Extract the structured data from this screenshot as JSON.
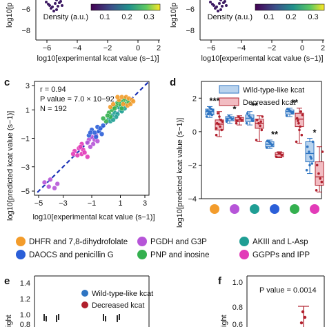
{
  "colors": {
    "dhfr": "#f39c2b",
    "pgdh": "#b655d8",
    "akiii": "#1f9e94",
    "daocs": "#2b5fd8",
    "pnp": "#34b04f",
    "ggpps": "#e23bb8",
    "wild": "#2f75c2",
    "wild_fill": "#b9d3ee",
    "decreased": "#b1202d",
    "decreased_fill": "#f2bcc2",
    "fit_line": "#1c33b6"
  },
  "top": {
    "left": {
      "ylabel": "log10[p",
      "yticks": [
        "−6",
        "−8"
      ],
      "xticks": [
        "−6",
        "−4",
        "−2",
        "0",
        "2"
      ],
      "xlabel": "log10[experimental kcat value (s−1)]",
      "colorbar_label": "Density (a.u.)",
      "colorbar_ticks": [
        "0.1",
        "0.2",
        "0.3"
      ]
    },
    "right": {
      "ylabel": "log10[p",
      "yticks": [
        "−6",
        "−8"
      ],
      "xticks": [
        "−6",
        "−4",
        "−2",
        "0",
        "2"
      ],
      "xlabel": "log10[experimental kcat value (s−1)]",
      "colorbar_label": "Density (a.u.)",
      "colorbar_ticks": [
        "0.1",
        "0.2",
        "0.3"
      ]
    }
  },
  "panel_c": {
    "letter": "c",
    "r_text": "r = 0.94",
    "p_text": "P value = 7.0 × 10−92",
    "n_text": "N = 192",
    "xlabel": "log10[experimental kcat value (s−1)]",
    "ylabel": "log10[predicted kcat value (s−1)]",
    "xticks": [
      "−5",
      "−3",
      "−1",
      "1",
      "3"
    ],
    "yticks": [
      "3",
      "1",
      "−1",
      "−3",
      "−5"
    ]
  },
  "panel_d": {
    "letter": "d",
    "ylabel": "log10[predicted kcat value (s−1)]",
    "yticks": [
      "2",
      "0",
      "−2",
      "−4"
    ],
    "legend": [
      "Wild-type-like kcat",
      "Decreased kcat"
    ],
    "significance": [
      "***",
      "*",
      "**",
      "**",
      "**",
      "*"
    ]
  },
  "legend_bottom": [
    {
      "label": "DHFR and 7,8-dihydrofolate",
      "color_key": "dhfr"
    },
    {
      "label": "PGDH and G3P",
      "color_key": "pgdh"
    },
    {
      "label": "AKIII and L-Asp",
      "color_key": "akiii"
    },
    {
      "label": "DAOCS and penicillin G",
      "color_key": "daocs"
    },
    {
      "label": "PNP and inosine",
      "color_key": "pnp"
    },
    {
      "label": "GGPPs and IPP",
      "color_key": "ggpps"
    }
  ],
  "panel_e": {
    "letter": "e",
    "ylabel": "ight",
    "yticks": [
      "1.4",
      "1.2",
      "1.0",
      "0.8"
    ],
    "legend": [
      "Wild-type-like kcat",
      "Decreased kcat"
    ]
  },
  "panel_f": {
    "letter": "f",
    "ylabel": "ight",
    "yticks": [
      "1.0",
      "0.8",
      "0.6"
    ],
    "p_text": "P value = 0.0014"
  },
  "chart_data": [
    {
      "type": "scatter",
      "panel": "c",
      "xlim": [
        -5,
        3
      ],
      "ylim": [
        -5,
        3
      ],
      "diagonal": [
        [
          -5,
          -5
        ],
        [
          3,
          3
        ]
      ],
      "stats": {
        "r": 0.94,
        "p_value": "7.0 × 10−92",
        "n": 192
      },
      "groups": [
        {
          "color_key": "pgdh",
          "points": [
            [
              -4.3,
              -4.1
            ],
            [
              -4.0,
              -4.4
            ],
            [
              -3.9,
              -3.9
            ],
            [
              -3.6,
              -4.5
            ],
            [
              -3.4,
              -4.2
            ],
            [
              -1.2,
              -1.1
            ],
            [
              -1.0,
              -0.9
            ],
            [
              -0.9,
              -1.4
            ],
            [
              -1.3,
              -1.3
            ],
            [
              -0.8,
              -1.1
            ],
            [
              -0.7,
              -0.8
            ],
            [
              -1.1,
              -1.6
            ],
            [
              -0.6,
              -1.2
            ]
          ]
        },
        {
          "color_key": "ggpps",
          "points": [
            [
              -2.2,
              -1.9
            ],
            [
              -2.0,
              -2.2
            ],
            [
              -1.9,
              -1.7
            ],
            [
              -1.7,
              -2.1
            ],
            [
              -1.6,
              -1.8
            ],
            [
              -1.5,
              -2.0
            ],
            [
              -1.3,
              -2.3
            ],
            [
              -1.7,
              -1.4
            ],
            [
              -2.3,
              -2.1
            ],
            [
              -1.8,
              -1.6
            ]
          ]
        },
        {
          "color_key": "daocs",
          "points": [
            [
              -1.2,
              -0.8
            ],
            [
              -1.0,
              -0.4
            ],
            [
              -0.8,
              -0.6
            ],
            [
              -0.6,
              -0.2
            ],
            [
              -0.5,
              -0.5
            ],
            [
              -0.3,
              -0.7
            ],
            [
              -0.7,
              -0.9
            ],
            [
              -1.1,
              -0.6
            ],
            [
              -0.4,
              -0.3
            ],
            [
              -0.2,
              -0.1
            ]
          ]
        },
        {
          "color_key": "akiii",
          "points": [
            [
              0.2,
              0.4
            ],
            [
              0.4,
              0.6
            ],
            [
              0.6,
              0.8
            ],
            [
              0.8,
              0.7
            ],
            [
              1.0,
              1.0
            ],
            [
              0.3,
              0.2
            ],
            [
              0.7,
              0.5
            ],
            [
              1.1,
              0.9
            ],
            [
              0.9,
              1.2
            ],
            [
              0.5,
              0.3
            ],
            [
              1.3,
              1.1
            ]
          ]
        },
        {
          "color_key": "pnp",
          "points": [
            [
              0.0,
              0.2
            ],
            [
              0.2,
              0.8
            ],
            [
              0.4,
              1.0
            ],
            [
              0.5,
              1.2
            ],
            [
              0.7,
              1.3
            ],
            [
              0.8,
              1.5
            ],
            [
              1.0,
              1.4
            ],
            [
              1.2,
              1.6
            ],
            [
              1.4,
              1.4
            ],
            [
              1.5,
              1.7
            ],
            [
              0.6,
              1.1
            ],
            [
              0.9,
              1.6
            ],
            [
              1.1,
              1.1
            ],
            [
              1.3,
              1.8
            ],
            [
              0.3,
              0.5
            ],
            [
              -0.2,
              0.4
            ],
            [
              0.1,
              0.6
            ],
            [
              1.6,
              1.5
            ]
          ]
        },
        {
          "color_key": "dhfr",
          "points": [
            [
              0.3,
              1.2
            ],
            [
              0.5,
              1.4
            ],
            [
              0.9,
              1.7
            ],
            [
              1.1,
              1.9
            ],
            [
              1.4,
              1.9
            ],
            [
              1.6,
              1.8
            ],
            [
              1.8,
              1.7
            ],
            [
              1.5,
              1.3
            ],
            [
              1.2,
              1.4
            ],
            [
              0.8,
              1.9
            ],
            [
              1.7,
              1.4
            ],
            [
              1.9,
              1.6
            ]
          ]
        }
      ]
    },
    {
      "type": "box",
      "panel": "d",
      "ylim": [
        -4,
        3
      ],
      "groups": [
        {
          "color_key": "dhfr",
          "wild": {
            "q1": 1.0,
            "median": 1.2,
            "q3": 1.35,
            "min": 0.85,
            "max": 1.5,
            "points": [
              0.9,
              1.0,
              1.1,
              1.2,
              1.25,
              1.3,
              1.35,
              1.45,
              1.05
            ]
          },
          "decreased": {
            "q1": 0.1,
            "median": 0.45,
            "q3": 0.7,
            "min": -0.3,
            "max": 1.2,
            "points": [
              -0.2,
              0.1,
              0.3,
              0.45,
              0.5,
              0.6,
              0.7,
              0.9,
              1.1,
              0.2
            ]
          },
          "sig": "***"
        },
        {
          "color_key": "pgdh",
          "wild": {
            "q1": 0.65,
            "median": 0.8,
            "q3": 0.9,
            "min": 0.5,
            "max": 1.0,
            "points": [
              0.6,
              0.75,
              0.85,
              0.95,
              0.7
            ]
          },
          "decreased": {
            "q1": 0.6,
            "median": 0.7,
            "q3": 0.85,
            "min": 0.4,
            "max": 0.95,
            "points": [
              0.5,
              0.7,
              0.8,
              0.9,
              0.65
            ]
          },
          "sig": "*"
        },
        {
          "color_key": "akiii",
          "wild": {
            "q1": 0.6,
            "median": 0.8,
            "q3": 1.0,
            "min": 0.4,
            "max": 1.2,
            "points": [
              0.5,
              0.7,
              0.85,
              0.95,
              1.1,
              0.65
            ]
          },
          "decreased": {
            "q1": 0.2,
            "median": 0.5,
            "q3": 0.75,
            "min": -0.6,
            "max": 0.95,
            "points": [
              -0.5,
              0.1,
              0.35,
              0.5,
              0.7,
              0.9,
              0.6
            ]
          },
          "sig": "**"
        },
        {
          "color_key": "daocs",
          "wild": {
            "q1": -0.9,
            "median": -0.75,
            "q3": -0.6,
            "min": -1.0,
            "max": -0.5,
            "points": [
              -0.95,
              -0.8,
              -0.7,
              -0.6,
              -0.55
            ]
          },
          "decreased": {
            "q1": -1.5,
            "median": -1.35,
            "q3": -1.25,
            "min": -1.55,
            "max": -1.2,
            "points": [
              -1.5,
              -1.4,
              -1.3,
              -1.25
            ]
          },
          "sig": "**"
        },
        {
          "color_key": "pnp",
          "wild": {
            "q1": 1.05,
            "median": 1.2,
            "q3": 1.3,
            "min": 0.9,
            "max": 1.4,
            "points": [
              0.95,
              1.1,
              1.2,
              1.3,
              1.35,
              1.15
            ]
          },
          "decreased": {
            "q1": 0.3,
            "median": 0.75,
            "q3": 1.1,
            "min": -0.7,
            "max": 1.4,
            "points": [
              -0.6,
              -0.2,
              0.3,
              0.5,
              0.8,
              1.0,
              1.2,
              0.1,
              0.65
            ]
          },
          "sig": "**"
        },
        {
          "color_key": "ggpps",
          "wild": {
            "q1": -1.8,
            "median": -1.3,
            "q3": -0.6,
            "min": -2.5,
            "max": -0.4,
            "points": [
              -2.3,
              -1.9,
              -1.5,
              -1.2,
              -0.9,
              -0.6,
              -1.6,
              -2.0
            ]
          },
          "decreased": {
            "q1": -3.2,
            "median": -2.7,
            "q3": -1.8,
            "min": -3.6,
            "max": -0.9,
            "points": [
              -3.5,
              -3.0,
              -2.8,
              -2.5,
              -2.0,
              -1.2
            ]
          },
          "sig": "*"
        }
      ]
    }
  ]
}
